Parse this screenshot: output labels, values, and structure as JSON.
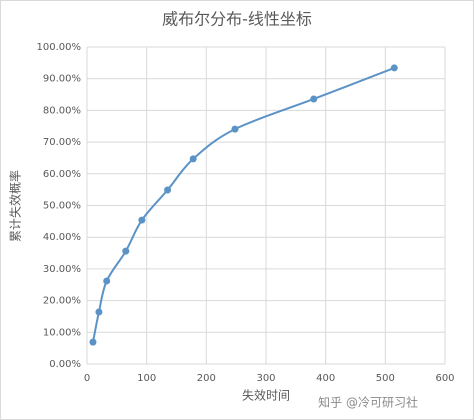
{
  "chart_data": {
    "type": "line",
    "title": "威布尔分布-线性坐标",
    "x_label": "失效时间",
    "y_label": "累计失效概率",
    "watermark": "知乎 @冷可研习社",
    "x": [
      10,
      20,
      33,
      65,
      92,
      135,
      178,
      248,
      380,
      515
    ],
    "series": [
      {
        "name": "累计失效概率",
        "color": "#5b93c7",
        "values": [
          6.9,
          16.4,
          26.2,
          35.6,
          45.4,
          54.9,
          64.7,
          74.1,
          83.6,
          93.4
        ]
      }
    ],
    "xlim": [
      0,
      600
    ],
    "xticks": [
      0,
      100,
      200,
      300,
      400,
      500,
      600
    ],
    "ylim": [
      0,
      100
    ],
    "yticks": [
      {
        "value": 0,
        "label": "0.00%"
      },
      {
        "value": 10,
        "label": "10.00%"
      },
      {
        "value": 20,
        "label": "20.00%"
      },
      {
        "value": 30,
        "label": "30.00%"
      },
      {
        "value": 40,
        "label": "40.00%"
      },
      {
        "value": 50,
        "label": "50.00%"
      },
      {
        "value": 60,
        "label": "60.00%"
      },
      {
        "value": 70,
        "label": "70.00%"
      },
      {
        "value": 80,
        "label": "80.00%"
      },
      {
        "value": 90,
        "label": "90.00%"
      },
      {
        "value": 100,
        "label": "100.00%"
      }
    ],
    "grid": true,
    "smooth": true
  }
}
